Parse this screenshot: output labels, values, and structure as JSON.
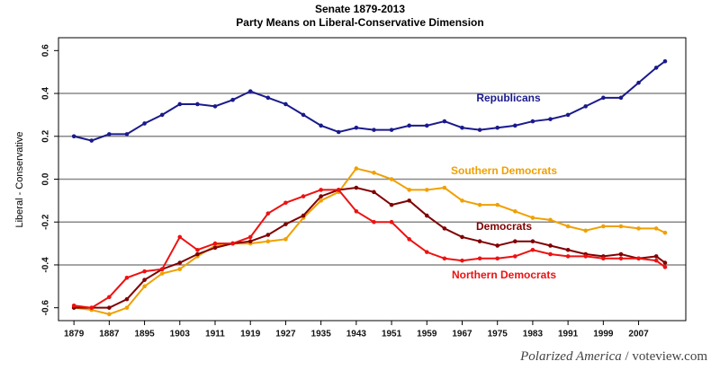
{
  "chart_data": {
    "type": "line",
    "title": "Senate 1879-2013",
    "subtitle": "Party Means on Liberal-Conservative Dimension",
    "y_label": "Liberal - Conservative",
    "source": [
      "Polarized America",
      "/ voteview.com"
    ],
    "x": [
      1879,
      1883,
      1887,
      1891,
      1895,
      1899,
      1903,
      1907,
      1911,
      1915,
      1919,
      1923,
      1927,
      1931,
      1935,
      1939,
      1943,
      1947,
      1951,
      1955,
      1959,
      1963,
      1967,
      1971,
      1975,
      1979,
      1983,
      1987,
      1991,
      1995,
      1999,
      2003,
      2007,
      2011,
      2013
    ],
    "series": [
      {
        "name": "Republicans",
        "color": "#1a1a8c",
        "values": [
          0.2,
          0.18,
          0.21,
          0.21,
          0.26,
          0.3,
          0.35,
          0.35,
          0.34,
          0.37,
          0.41,
          0.38,
          0.35,
          0.3,
          0.25,
          0.22,
          0.24,
          0.23,
          0.23,
          0.25,
          0.25,
          0.27,
          0.24,
          0.23,
          0.24,
          0.25,
          0.27,
          0.28,
          0.3,
          0.34,
          0.38,
          0.38,
          0.45,
          0.52,
          0.55
        ]
      },
      {
        "name": "Southern Democrats",
        "color": "#f0a000",
        "values": [
          -0.6,
          -0.61,
          -0.63,
          -0.6,
          -0.5,
          -0.44,
          -0.42,
          -0.36,
          -0.31,
          -0.3,
          -0.3,
          -0.29,
          -0.28,
          -0.18,
          -0.1,
          -0.06,
          0.05,
          0.03,
          0.0,
          -0.05,
          -0.05,
          -0.04,
          -0.1,
          -0.12,
          -0.12,
          -0.15,
          -0.18,
          -0.19,
          -0.22,
          -0.24,
          -0.22,
          -0.22,
          -0.23,
          -0.23,
          -0.25
        ]
      },
      {
        "name": "Democrats",
        "color": "#800000",
        "values": [
          -0.6,
          -0.6,
          -0.6,
          -0.56,
          -0.47,
          -0.42,
          -0.39,
          -0.35,
          -0.32,
          -0.3,
          -0.29,
          -0.26,
          -0.21,
          -0.17,
          -0.08,
          -0.05,
          -0.04,
          -0.06,
          -0.12,
          -0.1,
          -0.17,
          -0.23,
          -0.27,
          -0.29,
          -0.31,
          -0.29,
          -0.29,
          -0.31,
          -0.33,
          -0.35,
          -0.36,
          -0.35,
          -0.37,
          -0.36,
          -0.39
        ]
      },
      {
        "name": "Northern Democrats",
        "color": "#ee1111",
        "values": [
          -0.59,
          -0.6,
          -0.55,
          -0.46,
          -0.43,
          -0.42,
          -0.27,
          -0.33,
          -0.3,
          -0.3,
          -0.27,
          -0.16,
          -0.11,
          -0.08,
          -0.05,
          -0.05,
          -0.15,
          -0.2,
          -0.2,
          -0.28,
          -0.34,
          -0.37,
          -0.38,
          -0.37,
          -0.37,
          -0.36,
          -0.33,
          -0.35,
          -0.36,
          -0.36,
          -0.37,
          -0.37,
          -0.37,
          -0.38,
          -0.41
        ]
      }
    ],
    "xlim": [
      1875.5,
      2017.7
    ],
    "xticks": [
      1879,
      1887,
      1895,
      1903,
      1911,
      1919,
      1927,
      1935,
      1943,
      1951,
      1959,
      1967,
      1975,
      1983,
      1991,
      1999,
      2007
    ],
    "ylim": [
      -0.66,
      0.66
    ],
    "yticks": [
      -0.6,
      -0.4,
      -0.2,
      {
        "value": 0,
        "label": "0.0"
      },
      0.2,
      0.4,
      0.6
    ],
    "grid": true
  }
}
